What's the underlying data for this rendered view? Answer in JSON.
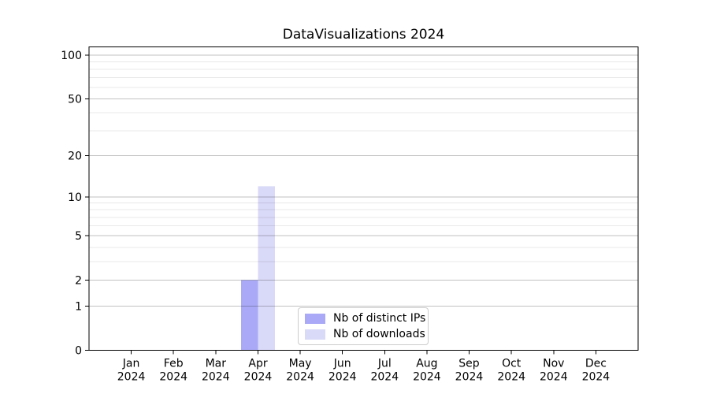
{
  "chart_data": {
    "type": "bar",
    "title": "DataVisualizations 2024",
    "categories": [
      "Jan",
      "Feb",
      "Mar",
      "Apr",
      "May",
      "Jun",
      "Jul",
      "Aug",
      "Sep",
      "Oct",
      "Nov",
      "Dec"
    ],
    "year_label": "2024",
    "series": [
      {
        "name": "Nb of distinct IPs",
        "color": "#a9a9f7",
        "values": [
          0,
          0,
          0,
          2,
          0,
          0,
          0,
          0,
          0,
          0,
          0,
          0
        ]
      },
      {
        "name": "Nb of downloads",
        "color": "#d9d9f8",
        "values": [
          0,
          0,
          0,
          12,
          0,
          0,
          0,
          0,
          0,
          0,
          0,
          0
        ]
      }
    ],
    "yscale": "log1p",
    "ylim": [
      0,
      114
    ],
    "yticks": [
      0,
      1,
      2,
      5,
      10,
      20,
      50,
      100
    ],
    "minor_gridlines": [
      3,
      4,
      6,
      7,
      8,
      9,
      30,
      40,
      60,
      70,
      80,
      90
    ],
    "grid": "horizontal",
    "legend_position": "inside-bottom-center",
    "colors": {
      "axis": "#000000",
      "major_grid": "rgba(0,0,0,0.24)",
      "minor_grid": "rgba(0,0,0,0.09)",
      "background": "#ffffff"
    }
  }
}
